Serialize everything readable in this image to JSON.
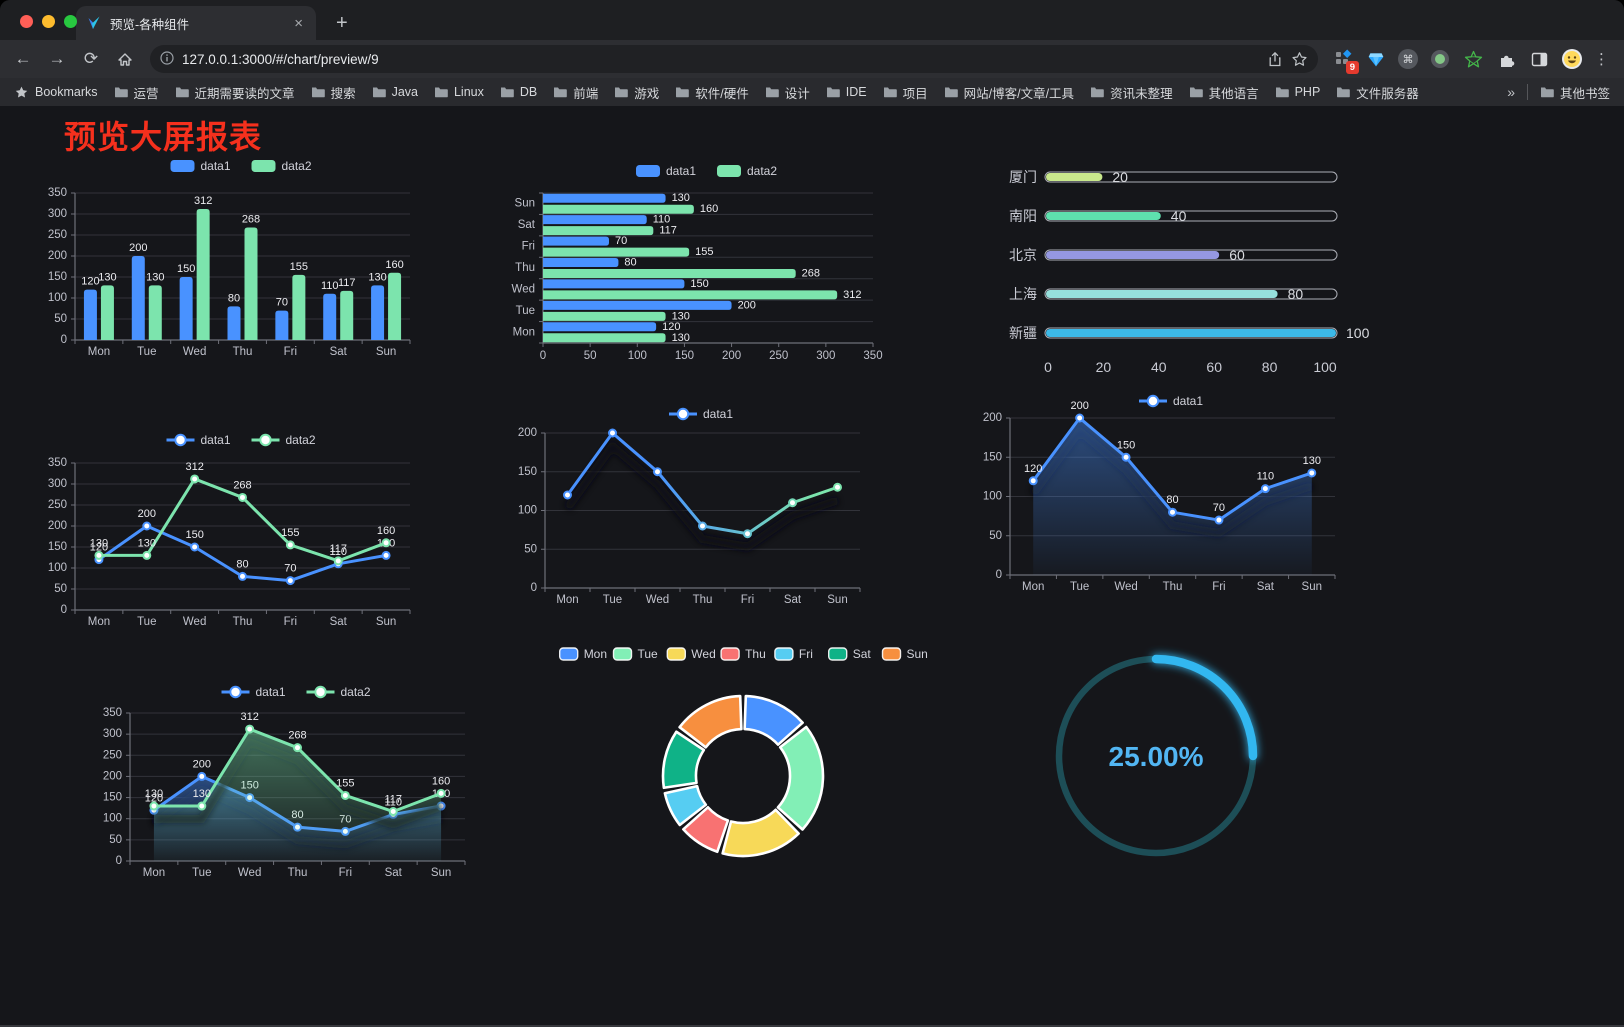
{
  "browser": {
    "tab_title": "预览-各种组件",
    "close_glyph": "×",
    "newtab_glyph": "+",
    "url": "127.0.0.1:3000/#/chart/preview/9",
    "back_glyph": "←",
    "forward_glyph": "→",
    "reload_glyph": "⟳",
    "extension_badge": "9",
    "menu_glyph": "⋮",
    "bookmarks_label": "Bookmarks",
    "bookmark_folders": [
      "运营",
      "近期需要读的文章",
      "搜索",
      "Java",
      "Linux",
      "DB",
      "前端",
      "游戏",
      "软件/硬件",
      "设计",
      "IDE",
      "项目",
      "网站/博客/文章/工具",
      "资讯未整理",
      "其他语言",
      "PHP",
      "文件服务器"
    ],
    "overflow_chevron": "»",
    "other_bookmarks": "其他书签"
  },
  "page": {
    "title": "预览大屏报表",
    "title_color": "#f5301d",
    "background": "#15161a"
  },
  "chart_data": [
    {
      "id": "grouped-bar",
      "type": "bar",
      "categories": [
        "Mon",
        "Tue",
        "Wed",
        "Thu",
        "Fri",
        "Sat",
        "Sun"
      ],
      "series": [
        {
          "name": "data1",
          "color": "#4992ff",
          "values": [
            120,
            200,
            150,
            80,
            70,
            110,
            130
          ]
        },
        {
          "name": "data2",
          "color": "#7ce4ad",
          "values": [
            130,
            130,
            312,
            268,
            155,
            117,
            160
          ]
        }
      ],
      "ylim": [
        0,
        350
      ],
      "yticks": [
        0,
        50,
        100,
        150,
        200,
        250,
        300,
        350
      ],
      "legend_position": "top",
      "grid": true,
      "value_labels": true
    },
    {
      "id": "horizontal-bar",
      "type": "hbar",
      "categories": [
        "Mon",
        "Tue",
        "Wed",
        "Thu",
        "Fri",
        "Sat",
        "Sun"
      ],
      "categories_order": "Mon at bottom, Sun at top",
      "series": [
        {
          "name": "data1",
          "color": "#4992ff",
          "values": [
            120,
            200,
            150,
            80,
            70,
            110,
            130
          ]
        },
        {
          "name": "data2",
          "color": "#7ce4ad",
          "values": [
            130,
            130,
            312,
            268,
            155,
            117,
            160
          ]
        }
      ],
      "xlim": [
        0,
        350
      ],
      "xticks": [
        0,
        50,
        100,
        150,
        200,
        250,
        300,
        350
      ],
      "legend_position": "top",
      "value_labels": true
    },
    {
      "id": "city-progress",
      "type": "bar",
      "subtype": "progress-pills",
      "items": [
        {
          "label": "厦门",
          "value": 20,
          "color": "#c9e88c"
        },
        {
          "label": "南阳",
          "value": 40,
          "color": "#5ee0ae"
        },
        {
          "label": "北京",
          "value": 60,
          "color": "#9598e2"
        },
        {
          "label": "上海",
          "value": 80,
          "color": "#96e0dd"
        },
        {
          "label": "新疆",
          "value": 100,
          "color": "#3cb9e8"
        }
      ],
      "max": 100,
      "xticks": [
        0,
        20,
        40,
        60,
        80,
        100
      ]
    },
    {
      "id": "line-two-series",
      "type": "line",
      "categories": [
        "Mon",
        "Tue",
        "Wed",
        "Thu",
        "Fri",
        "Sat",
        "Sun"
      ],
      "series": [
        {
          "name": "data1",
          "color": "#4992ff",
          "values": [
            120,
            200,
            150,
            80,
            70,
            110,
            130
          ]
        },
        {
          "name": "data2",
          "color": "#7ce4ad",
          "values": [
            130,
            130,
            312,
            268,
            155,
            117,
            160
          ]
        }
      ],
      "ylim": [
        0,
        350
      ],
      "yticks": [
        0,
        50,
        100,
        150,
        200,
        250,
        300,
        350
      ],
      "legend_position": "top",
      "value_labels": true,
      "markers": true
    },
    {
      "id": "gradient-line",
      "type": "line",
      "categories": [
        "Mon",
        "Tue",
        "Wed",
        "Thu",
        "Fri",
        "Sat",
        "Sun"
      ],
      "series": [
        {
          "name": "data1",
          "gradient": [
            "#4992ff",
            "#7ce4ad"
          ],
          "values": [
            120,
            200,
            150,
            80,
            70,
            110,
            130
          ]
        }
      ],
      "ylim": [
        0,
        200
      ],
      "yticks": [
        0,
        50,
        100,
        150,
        200
      ],
      "legend_position": "top",
      "value_labels": false,
      "markers": true,
      "shadow": true
    },
    {
      "id": "area-line",
      "type": "area",
      "categories": [
        "Mon",
        "Tue",
        "Wed",
        "Thu",
        "Fri",
        "Sat",
        "Sun"
      ],
      "series": [
        {
          "name": "data1",
          "color": "#4992ff",
          "area": true,
          "values": [
            120,
            200,
            150,
            80,
            70,
            110,
            130
          ]
        }
      ],
      "ylim": [
        0,
        200
      ],
      "yticks": [
        0,
        50,
        100,
        150,
        200
      ],
      "legend_position": "top",
      "value_labels": true,
      "markers": true,
      "shadow": true
    },
    {
      "id": "double-area-line",
      "type": "area",
      "categories": [
        "Mon",
        "Tue",
        "Wed",
        "Thu",
        "Fri",
        "Sat",
        "Sun"
      ],
      "series": [
        {
          "name": "data1",
          "color": "#4992ff",
          "area": true,
          "values": [
            120,
            200,
            150,
            80,
            70,
            110,
            130
          ]
        },
        {
          "name": "data2",
          "color": "#7ce4ad",
          "area": true,
          "values": [
            130,
            130,
            312,
            268,
            155,
            117,
            160
          ]
        }
      ],
      "ylim": [
        0,
        350
      ],
      "yticks": [
        0,
        50,
        100,
        150,
        200,
        250,
        300,
        350
      ],
      "legend_position": "top",
      "value_labels": true,
      "markers": true,
      "shadow": true
    },
    {
      "id": "weekday-donut",
      "type": "pie",
      "categories": [
        "Mon",
        "Tue",
        "Wed",
        "Thu",
        "Fri",
        "Sat",
        "Sun"
      ],
      "values": [
        120,
        200,
        150,
        80,
        70,
        110,
        130
      ],
      "colors": [
        "#4992ff",
        "#82efb6",
        "#f7d958",
        "#f87272",
        "#56cdf2",
        "#0fb287",
        "#f78f3f"
      ],
      "legend_position": "top",
      "donut": true,
      "border_color": "#ffffff"
    },
    {
      "id": "percent-gauge",
      "type": "gauge",
      "value": 25,
      "label": "25.00%",
      "color": "#33b7f0",
      "track_color": "#1d4e57",
      "text_color": "#52b6f3"
    }
  ]
}
